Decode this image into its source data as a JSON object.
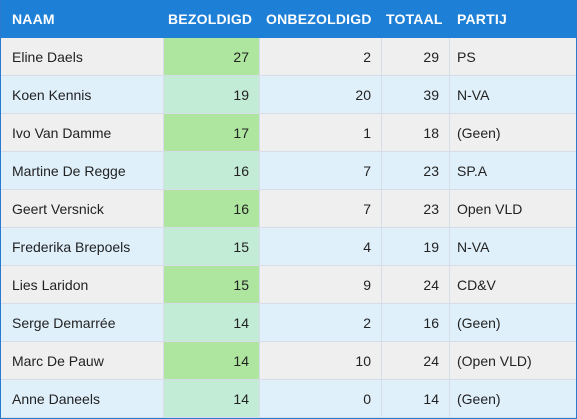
{
  "headers": {
    "naam": "NAAM",
    "bezoldigd": "BEZOLDIGD",
    "onbezoldigd": "ONBEZOLDIGD",
    "totaal": "TOTAAL",
    "partij": "PARTIJ"
  },
  "rows": [
    {
      "naam": "Eline Daels",
      "bezoldigd": "27",
      "onbezoldigd": "2",
      "totaal": "29",
      "partij": "PS"
    },
    {
      "naam": "Koen Kennis",
      "bezoldigd": "19",
      "onbezoldigd": "20",
      "totaal": "39",
      "partij": "N-VA"
    },
    {
      "naam": "Ivo Van Damme",
      "bezoldigd": "17",
      "onbezoldigd": "1",
      "totaal": "18",
      "partij": "(Geen)"
    },
    {
      "naam": "Martine De Regge",
      "bezoldigd": "16",
      "onbezoldigd": "7",
      "totaal": "23",
      "partij": "SP.A"
    },
    {
      "naam": "Geert Versnick",
      "bezoldigd": "16",
      "onbezoldigd": "7",
      "totaal": "23",
      "partij": "Open VLD"
    },
    {
      "naam": "Frederika Brepoels",
      "bezoldigd": "15",
      "onbezoldigd": "4",
      "totaal": "19",
      "partij": "N-VA"
    },
    {
      "naam": "Lies Laridon",
      "bezoldigd": "15",
      "onbezoldigd": "9",
      "totaal": "24",
      "partij": "CD&V"
    },
    {
      "naam": "Serge Demarrée",
      "bezoldigd": "14",
      "onbezoldigd": "2",
      "totaal": "16",
      "partij": "(Geen)"
    },
    {
      "naam": "Marc De Pauw",
      "bezoldigd": "14",
      "onbezoldigd": "10",
      "totaal": "24",
      "partij": "(Open VLD)"
    },
    {
      "naam": "Anne Daneels",
      "bezoldigd": "14",
      "onbezoldigd": "0",
      "totaal": "14",
      "partij": "(Geen)"
    }
  ],
  "colors": {
    "header_bg": "#1e7fd6",
    "row_even_bg": "#efefef",
    "row_odd_bg": "#dff0fb",
    "highlight_dark": "#aee6a0",
    "highlight_light": "#c3ecd6"
  }
}
